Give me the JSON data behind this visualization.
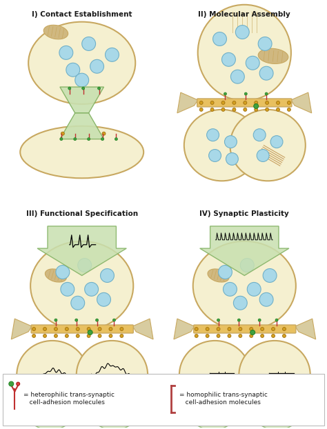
{
  "background_color": "#ffffff",
  "panel_titles": [
    "I) Contact Establishment",
    "II) Molecular Assembly",
    "III) Functional Specification",
    "IV) Synaptic Plasticity"
  ],
  "legend_left_text": "= heterophilic trans-synaptic\n   cell-adhesion molecules",
  "legend_right_text": "= homophilic trans-synaptic\n   cell-adhesion molecules",
  "cell_body_color": "#f5f0d0",
  "cell_border_color": "#c8a860",
  "vesicle_color": "#a8d8e8",
  "vesicle_edge_color": "#70b0c8",
  "synapse_bar_color": "#e8c060",
  "arrow_color_light": "#c8e0b0",
  "arrow_color_dark": "#80b060",
  "text_color": "#1a1a1a",
  "spine_color": "#d8cca0",
  "mito_color": "#d0b880",
  "fibril_color": "#c8a060",
  "het_mol_color": "#c03030",
  "hom_mol_color": "#b04040",
  "green_dot_color": "#40a040"
}
